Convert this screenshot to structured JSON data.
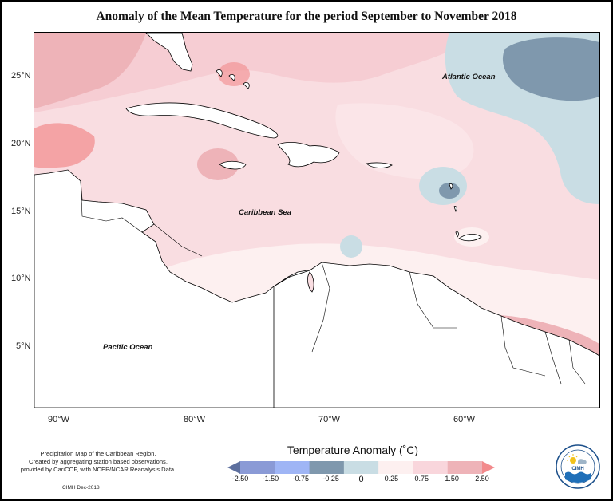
{
  "title": "Anomaly of the Mean Temperature for the period September to November 2018",
  "lat_labels": [
    "25°N",
    "20°N",
    "15°N",
    "10°N",
    "5°N"
  ],
  "lon_labels": [
    "90°W",
    "80°W",
    "70°W",
    "60°W"
  ],
  "ocean_labels": {
    "atlantic": "Atlantic Ocean",
    "caribbean": "Caribbean Sea",
    "pacific": "Pacific Ocean"
  },
  "note": {
    "line1": "Precipitation Map of the Caribbean Region.",
    "line2": "Created by aggregating station based observations,",
    "line3": "provided by CariCOF, with NCEP/NCAR Reanalysis Data."
  },
  "credit": "CIMH Dec-2018",
  "legend": {
    "title": "Temperature Anomaly (˚C)",
    "ticks": [
      "-2.50",
      "-1.50",
      "-0.75",
      "-0.25",
      "0",
      "0.25",
      "0.75",
      "1.50",
      "2.50"
    ],
    "colors": [
      "#5d6f9e",
      "#8a9ad6",
      "#9fb5f5",
      "#7f98ad",
      "#c9dde4",
      "#fdf0f0",
      "#f9d6dc",
      "#eeb3b8",
      "#f28a8c"
    ]
  },
  "logo_text": "CIMH"
}
